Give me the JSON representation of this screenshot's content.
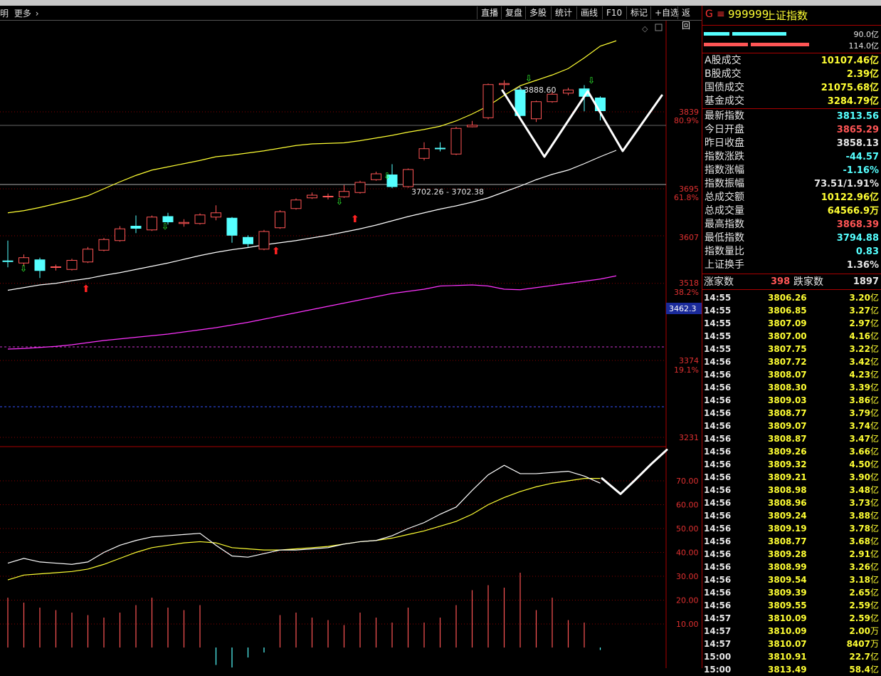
{
  "toolbar": {
    "left_a": "明",
    "left_b": "更多",
    "buttons": [
      "直播",
      "复盘",
      "多股",
      "统计",
      "画线",
      "F10",
      "标记",
      "+自选",
      "返回"
    ]
  },
  "index": {
    "g": "G",
    "eq": "≡",
    "code": "999999",
    "name": "上证指数"
  },
  "bars": {
    "top_label": "90.0亿",
    "bottom_label": "114.0亿"
  },
  "stats": [
    {
      "label": "A股成交",
      "value": "10107.46亿",
      "color": "#ffff33"
    },
    {
      "label": "B股成交",
      "value": "2.39亿",
      "color": "#ffff33"
    },
    {
      "label": "国债成交",
      "value": "21075.68亿",
      "color": "#ffff33"
    },
    {
      "label": "基金成交",
      "value": "3284.79亿",
      "color": "#ffff33"
    },
    {
      "label": "最新指数",
      "value": "3813.56",
      "color": "#55ffff"
    },
    {
      "label": "今日开盘",
      "value": "3865.29",
      "color": "#ff5555"
    },
    {
      "label": "昨日收盘",
      "value": "3858.13",
      "color": "#e6e6e6"
    },
    {
      "label": "指数涨跌",
      "value": "-44.57",
      "color": "#55ffff"
    },
    {
      "label": "指数涨幅",
      "value": "-1.16%",
      "color": "#55ffff"
    },
    {
      "label": "指数振幅",
      "value": "73.51/1.91%",
      "color": "#e6e6e6"
    },
    {
      "label": "总成交额",
      "value": "10122.96亿",
      "color": "#ffff33"
    },
    {
      "label": "总成交量",
      "value": "64566.9万",
      "color": "#ffff33"
    },
    {
      "label": "最高指数",
      "value": "3868.39",
      "color": "#ff5555"
    },
    {
      "label": "最低指数",
      "value": "3794.88",
      "color": "#55ffff"
    },
    {
      "label": "指数量比",
      "value": "0.83",
      "color": "#55ffff"
    },
    {
      "label": "上证换手",
      "value": "1.36%",
      "color": "#e6e6e6"
    }
  ],
  "breadth": {
    "up_label": "涨家数",
    "up": "398",
    "down_label": "跌家数",
    "down": "1897"
  },
  "ticks": [
    {
      "t": "14:55",
      "p": "3806.26",
      "v": "3.20",
      "u": "亿"
    },
    {
      "t": "14:55",
      "p": "3806.85",
      "v": "3.27",
      "u": "亿"
    },
    {
      "t": "14:55",
      "p": "3807.09",
      "v": "2.97",
      "u": "亿"
    },
    {
      "t": "14:55",
      "p": "3807.00",
      "v": "4.16",
      "u": "亿"
    },
    {
      "t": "14:55",
      "p": "3807.75",
      "v": "3.22",
      "u": "亿"
    },
    {
      "t": "14:56",
      "p": "3807.72",
      "v": "3.42",
      "u": "亿"
    },
    {
      "t": "14:56",
      "p": "3808.07",
      "v": "4.23",
      "u": "亿"
    },
    {
      "t": "14:56",
      "p": "3808.30",
      "v": "3.39",
      "u": "亿"
    },
    {
      "t": "14:56",
      "p": "3809.03",
      "v": "3.86",
      "u": "亿"
    },
    {
      "t": "14:56",
      "p": "3808.77",
      "v": "3.79",
      "u": "亿"
    },
    {
      "t": "14:56",
      "p": "3809.07",
      "v": "3.74",
      "u": "亿"
    },
    {
      "t": "14:56",
      "p": "3808.87",
      "v": "3.47",
      "u": "亿"
    },
    {
      "t": "14:56",
      "p": "3809.26",
      "v": "3.66",
      "u": "亿"
    },
    {
      "t": "14:56",
      "p": "3809.32",
      "v": "4.50",
      "u": "亿"
    },
    {
      "t": "14:56",
      "p": "3809.21",
      "v": "3.90",
      "u": "亿"
    },
    {
      "t": "14:56",
      "p": "3808.98",
      "v": "3.48",
      "u": "亿"
    },
    {
      "t": "14:56",
      "p": "3808.96",
      "v": "3.73",
      "u": "亿"
    },
    {
      "t": "14:56",
      "p": "3809.24",
      "v": "3.88",
      "u": "亿"
    },
    {
      "t": "14:56",
      "p": "3809.19",
      "v": "3.78",
      "u": "亿"
    },
    {
      "t": "14:56",
      "p": "3808.77",
      "v": "3.68",
      "u": "亿"
    },
    {
      "t": "14:56",
      "p": "3809.28",
      "v": "2.91",
      "u": "亿"
    },
    {
      "t": "14:56",
      "p": "3808.99",
      "v": "3.26",
      "u": "亿"
    },
    {
      "t": "14:56",
      "p": "3809.54",
      "v": "3.18",
      "u": "亿"
    },
    {
      "t": "14:56",
      "p": "3809.39",
      "v": "2.65",
      "u": "亿"
    },
    {
      "t": "14:56",
      "p": "3809.55",
      "v": "2.59",
      "u": "亿"
    },
    {
      "t": "14:57",
      "p": "3810.09",
      "v": "2.59",
      "u": "亿"
    },
    {
      "t": "14:57",
      "p": "3810.09",
      "v": "2.00",
      "u": "万"
    },
    {
      "t": "14:57",
      "p": "3810.07",
      "v": "8407",
      "u": "万"
    },
    {
      "t": "15:00",
      "p": "3810.91",
      "v": "22.7",
      "u": "亿"
    },
    {
      "t": "15:00",
      "p": "3813.49",
      "v": "58.4",
      "u": "亿"
    }
  ],
  "chart_data": {
    "type": "candlestick",
    "price_axis_ticks": [
      "3839",
      "3695",
      "3607",
      "3518",
      "3374",
      "3231"
    ],
    "fib_labels": [
      "80.9%",
      "61.8%",
      "38.2%",
      "19.1%"
    ],
    "marker_price": "3462.3",
    "annotation_high": "3888.60",
    "annotation_range": "3702.26 - 3702.38",
    "indicator_ticks": [
      "70.00",
      "60.00",
      "50.00",
      "40.00",
      "30.00",
      "20.00",
      "10.00"
    ],
    "candles": [
      {
        "o": 3560,
        "c": 3560,
        "h": 3598,
        "l": 3548,
        "up": false
      },
      {
        "o": 3556,
        "c": 3566,
        "h": 3572,
        "l": 3550,
        "up": true
      },
      {
        "o": 3562,
        "c": 3542,
        "h": 3566,
        "l": 3528,
        "up": false
      },
      {
        "o": 3548,
        "c": 3549,
        "h": 3553,
        "l": 3542,
        "up": true
      },
      {
        "o": 3544,
        "c": 3561,
        "h": 3564,
        "l": 3542,
        "up": true
      },
      {
        "o": 3558,
        "c": 3582,
        "h": 3586,
        "l": 3556,
        "up": true
      },
      {
        "o": 3580,
        "c": 3600,
        "h": 3603,
        "l": 3578,
        "up": true
      },
      {
        "o": 3598,
        "c": 3620,
        "h": 3625,
        "l": 3596,
        "up": true
      },
      {
        "o": 3625,
        "c": 3621,
        "h": 3645,
        "l": 3612,
        "up": false
      },
      {
        "o": 3618,
        "c": 3642,
        "h": 3645,
        "l": 3616,
        "up": true
      },
      {
        "o": 3643,
        "c": 3633,
        "h": 3650,
        "l": 3628,
        "up": false
      },
      {
        "o": 3630,
        "c": 3632,
        "h": 3638,
        "l": 3624,
        "up": true
      },
      {
        "o": 3630,
        "c": 3646,
        "h": 3649,
        "l": 3628,
        "up": true
      },
      {
        "o": 3642,
        "c": 3650,
        "h": 3664,
        "l": 3636,
        "up": true
      },
      {
        "o": 3640,
        "c": 3608,
        "h": 3642,
        "l": 3594,
        "up": false
      },
      {
        "o": 3604,
        "c": 3592,
        "h": 3608,
        "l": 3586,
        "up": false
      },
      {
        "o": 3582,
        "c": 3615,
        "h": 3618,
        "l": 3580,
        "up": true
      },
      {
        "o": 3622,
        "c": 3652,
        "h": 3655,
        "l": 3620,
        "up": true
      },
      {
        "o": 3658,
        "c": 3674,
        "h": 3677,
        "l": 3656,
        "up": true
      },
      {
        "o": 3678,
        "c": 3683,
        "h": 3688,
        "l": 3676,
        "up": true
      },
      {
        "o": 3681,
        "c": 3680,
        "h": 3686,
        "l": 3675,
        "up": true
      },
      {
        "o": 3680,
        "c": 3690,
        "h": 3702,
        "l": 3678,
        "up": true
      },
      {
        "o": 3688,
        "c": 3707,
        "h": 3710,
        "l": 3686,
        "up": true
      },
      {
        "o": 3712,
        "c": 3723,
        "h": 3727,
        "l": 3710,
        "up": true
      },
      {
        "o": 3721,
        "c": 3699,
        "h": 3741,
        "l": 3696,
        "up": false
      },
      {
        "o": 3699,
        "c": 3731,
        "h": 3733,
        "l": 3697,
        "up": true
      },
      {
        "o": 3752,
        "c": 3770,
        "h": 3782,
        "l": 3748,
        "up": true
      },
      {
        "o": 3771,
        "c": 3771,
        "h": 3782,
        "l": 3765,
        "up": false
      },
      {
        "o": 3760,
        "c": 3808,
        "h": 3811,
        "l": 3758,
        "up": true
      },
      {
        "o": 3811,
        "c": 3814,
        "h": 3822,
        "l": 3810,
        "up": true
      },
      {
        "o": 3828,
        "c": 3890,
        "h": 3892,
        "l": 3825,
        "up": true
      },
      {
        "o": 3890,
        "c": 3892,
        "h": 3898,
        "l": 3880,
        "up": true
      },
      {
        "o": 3880,
        "c": 3832,
        "h": 3886,
        "l": 3828,
        "up": false
      },
      {
        "o": 3826,
        "c": 3858,
        "h": 3860,
        "l": 3820,
        "up": true
      },
      {
        "o": 3858,
        "c": 3872,
        "h": 3877,
        "l": 3856,
        "up": true
      },
      {
        "o": 3874,
        "c": 3880,
        "h": 3884,
        "l": 3870,
        "up": true
      },
      {
        "o": 3882,
        "c": 3868,
        "h": 3889,
        "l": 3840,
        "up": false
      },
      {
        "o": 3865,
        "c": 3841,
        "h": 3868,
        "l": 3823,
        "up": false
      }
    ],
    "ma_upper": [
      3650,
      3654,
      3660,
      3667,
      3674,
      3682,
      3695,
      3708,
      3720,
      3730,
      3736,
      3742,
      3748,
      3755,
      3758,
      3762,
      3766,
      3771,
      3776,
      3779,
      3780,
      3781,
      3785,
      3790,
      3795,
      3801,
      3806,
      3812,
      3822,
      3835,
      3850,
      3870,
      3888,
      3898,
      3908,
      3920,
      3940,
      3962,
      3972
    ],
    "ma_mid": [
      3505,
      3510,
      3515,
      3518,
      3523,
      3527,
      3533,
      3538,
      3544,
      3550,
      3556,
      3563,
      3570,
      3576,
      3581,
      3585,
      3590,
      3594,
      3598,
      3603,
      3608,
      3614,
      3620,
      3627,
      3635,
      3643,
      3650,
      3657,
      3663,
      3670,
      3678,
      3689,
      3700,
      3712,
      3722,
      3730,
      3742,
      3755,
      3767
    ],
    "ma_low": [
      3395,
      3396,
      3398,
      3400,
      3403,
      3407,
      3411,
      3414,
      3417,
      3420,
      3423,
      3427,
      3431,
      3435,
      3440,
      3445,
      3451,
      3457,
      3463,
      3469,
      3475,
      3481,
      3487,
      3493,
      3499,
      3503,
      3507,
      3513,
      3514,
      3515,
      3513,
      3507,
      3506,
      3510,
      3514,
      3518,
      3522,
      3526,
      3532
    ],
    "indicator_white": [
      35.5,
      37.5,
      36,
      35.5,
      35,
      36,
      40,
      43,
      45,
      46.5,
      47,
      47.5,
      48,
      43,
      38.5,
      38,
      39.5,
      41,
      41,
      41.5,
      42,
      43.5,
      44.5,
      45,
      47,
      50,
      52.5,
      56,
      59,
      66,
      72.5,
      76.5,
      73,
      73,
      73.5,
      74,
      72,
      69
    ],
    "indicator_yellow": [
      28.5,
      30.5,
      31,
      31.5,
      32,
      33,
      35,
      37.5,
      40,
      42,
      43,
      44,
      44.5,
      44,
      42,
      41.5,
      41,
      41,
      41.5,
      42,
      42.5,
      43.5,
      44.5,
      45,
      46,
      47.5,
      49,
      51,
      53,
      56,
      60,
      63,
      65.5,
      67.5,
      69,
      70,
      71,
      71
    ],
    "indicator_future": [
      71,
      64.5,
      70.5,
      77,
      83
    ],
    "volume": [
      20,
      18,
      16,
      15,
      14,
      13,
      12,
      14,
      17,
      20,
      16,
      15,
      17,
      -7,
      -8,
      -4,
      -2,
      13,
      14,
      12,
      11,
      9,
      14,
      12,
      10,
      16,
      10,
      12,
      17,
      23,
      25,
      24,
      30,
      15,
      20,
      11,
      10,
      -1
    ],
    "volume_extra": [],
    "hand_drawn_path": [
      [
        706,
        127
      ],
      [
        765,
        220
      ],
      [
        826,
        128
      ],
      [
        875,
        212
      ],
      [
        930,
        134
      ]
    ]
  }
}
